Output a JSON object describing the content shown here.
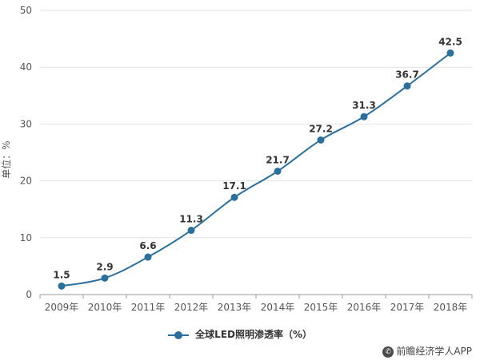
{
  "chart_data": {
    "type": "line",
    "categories": [
      "2009年",
      "2010年",
      "2011年",
      "2012年",
      "2013年",
      "2014年",
      "2015年",
      "2016年",
      "2017年",
      "2018年"
    ],
    "series": [
      {
        "name": "全球LED照明渗透率（%）",
        "values": [
          1.5,
          2.9,
          6.6,
          11.3,
          17.1,
          21.7,
          27.2,
          31.3,
          36.7,
          42.5
        ],
        "color": "#2b6f9c"
      }
    ],
    "data_labels": [
      "1.5",
      "2.9",
      "6.6",
      "11.3",
      "17.1",
      "21.7",
      "27.2",
      "31.3",
      "36.7",
      "42.5"
    ],
    "ylabel": "单位：%",
    "ylim": [
      0,
      50
    ],
    "yticks": [
      "0",
      "10",
      "20",
      "30",
      "40",
      "50"
    ],
    "grid": true,
    "legend": "bottom"
  },
  "source": {
    "icon": "wechat-icon",
    "text": "前瞻经济学人APP"
  }
}
